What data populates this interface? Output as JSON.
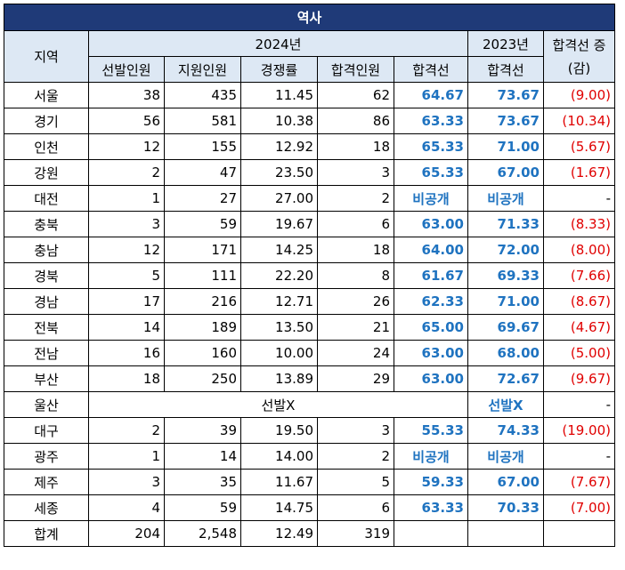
{
  "title": "역사",
  "header": {
    "region": "지역",
    "year_2024": "2024년",
    "year_2023": "2023년",
    "change": "합격선 증(감)",
    "sub_cols": [
      "선발인원",
      "지원인원",
      "경쟁률",
      "합격인원",
      "합격선"
    ],
    "sub_2023": "합격선"
  },
  "rows": [
    {
      "region": "서울",
      "selected": "38",
      "applicants": "435",
      "ratio": "11.45",
      "passed": "62",
      "cutoff_2024": "64.67",
      "cutoff_2023": "73.67",
      "change": "(9.00)"
    },
    {
      "region": "경기",
      "selected": "56",
      "applicants": "581",
      "ratio": "10.38",
      "passed": "86",
      "cutoff_2024": "63.33",
      "cutoff_2023": "73.67",
      "change": "(10.34)"
    },
    {
      "region": "인천",
      "selected": "12",
      "applicants": "155",
      "ratio": "12.92",
      "passed": "18",
      "cutoff_2024": "65.33",
      "cutoff_2023": "71.00",
      "change": "(5.67)"
    },
    {
      "region": "강원",
      "selected": "2",
      "applicants": "47",
      "ratio": "23.50",
      "passed": "3",
      "cutoff_2024": "65.33",
      "cutoff_2023": "67.00",
      "change": "(1.67)"
    },
    {
      "region": "대전",
      "selected": "1",
      "applicants": "27",
      "ratio": "27.00",
      "passed": "2",
      "cutoff_2024": "비공개",
      "cutoff_2023": "비공개",
      "change": "-"
    },
    {
      "region": "충북",
      "selected": "3",
      "applicants": "59",
      "ratio": "19.67",
      "passed": "6",
      "cutoff_2024": "63.00",
      "cutoff_2023": "71.33",
      "change": "(8.33)"
    },
    {
      "region": "충남",
      "selected": "12",
      "applicants": "171",
      "ratio": "14.25",
      "passed": "18",
      "cutoff_2024": "64.00",
      "cutoff_2023": "72.00",
      "change": "(8.00)"
    },
    {
      "region": "경북",
      "selected": "5",
      "applicants": "111",
      "ratio": "22.20",
      "passed": "8",
      "cutoff_2024": "61.67",
      "cutoff_2023": "69.33",
      "change": "(7.66)"
    },
    {
      "region": "경남",
      "selected": "17",
      "applicants": "216",
      "ratio": "12.71",
      "passed": "26",
      "cutoff_2024": "62.33",
      "cutoff_2023": "71.00",
      "change": "(8.67)"
    },
    {
      "region": "전북",
      "selected": "14",
      "applicants": "189",
      "ratio": "13.50",
      "passed": "21",
      "cutoff_2024": "65.00",
      "cutoff_2023": "69.67",
      "change": "(4.67)"
    },
    {
      "region": "전남",
      "selected": "16",
      "applicants": "160",
      "ratio": "10.00",
      "passed": "24",
      "cutoff_2024": "63.00",
      "cutoff_2023": "68.00",
      "change": "(5.00)"
    },
    {
      "region": "부산",
      "selected": "18",
      "applicants": "250",
      "ratio": "13.89",
      "passed": "29",
      "cutoff_2024": "63.00",
      "cutoff_2023": "72.67",
      "change": "(9.67)"
    },
    {
      "region": "울산",
      "merged_note": "선발X",
      "cutoff_2023": "선발X",
      "change": "-"
    },
    {
      "region": "대구",
      "selected": "2",
      "applicants": "39",
      "ratio": "19.50",
      "passed": "3",
      "cutoff_2024": "55.33",
      "cutoff_2023": "74.33",
      "change": "(19.00)"
    },
    {
      "region": "광주",
      "selected": "1",
      "applicants": "14",
      "ratio": "14.00",
      "passed": "2",
      "cutoff_2024": "비공개",
      "cutoff_2023": "비공개",
      "change": "-"
    },
    {
      "region": "제주",
      "selected": "3",
      "applicants": "35",
      "ratio": "11.67",
      "passed": "5",
      "cutoff_2024": "59.33",
      "cutoff_2023": "67.00",
      "change": "(7.67)"
    },
    {
      "region": "세종",
      "selected": "4",
      "applicants": "59",
      "ratio": "14.75",
      "passed": "6",
      "cutoff_2024": "63.33",
      "cutoff_2023": "70.33",
      "change": "(7.00)"
    }
  ],
  "total": {
    "region": "합계",
    "selected": "204",
    "applicants": "2,548",
    "ratio": "12.49",
    "passed": "319"
  },
  "colors": {
    "title_bg": "#1f3a78",
    "header_bg": "#dde8f4",
    "cutoff_blue": "#1f73c0",
    "change_red": "#e00000"
  }
}
